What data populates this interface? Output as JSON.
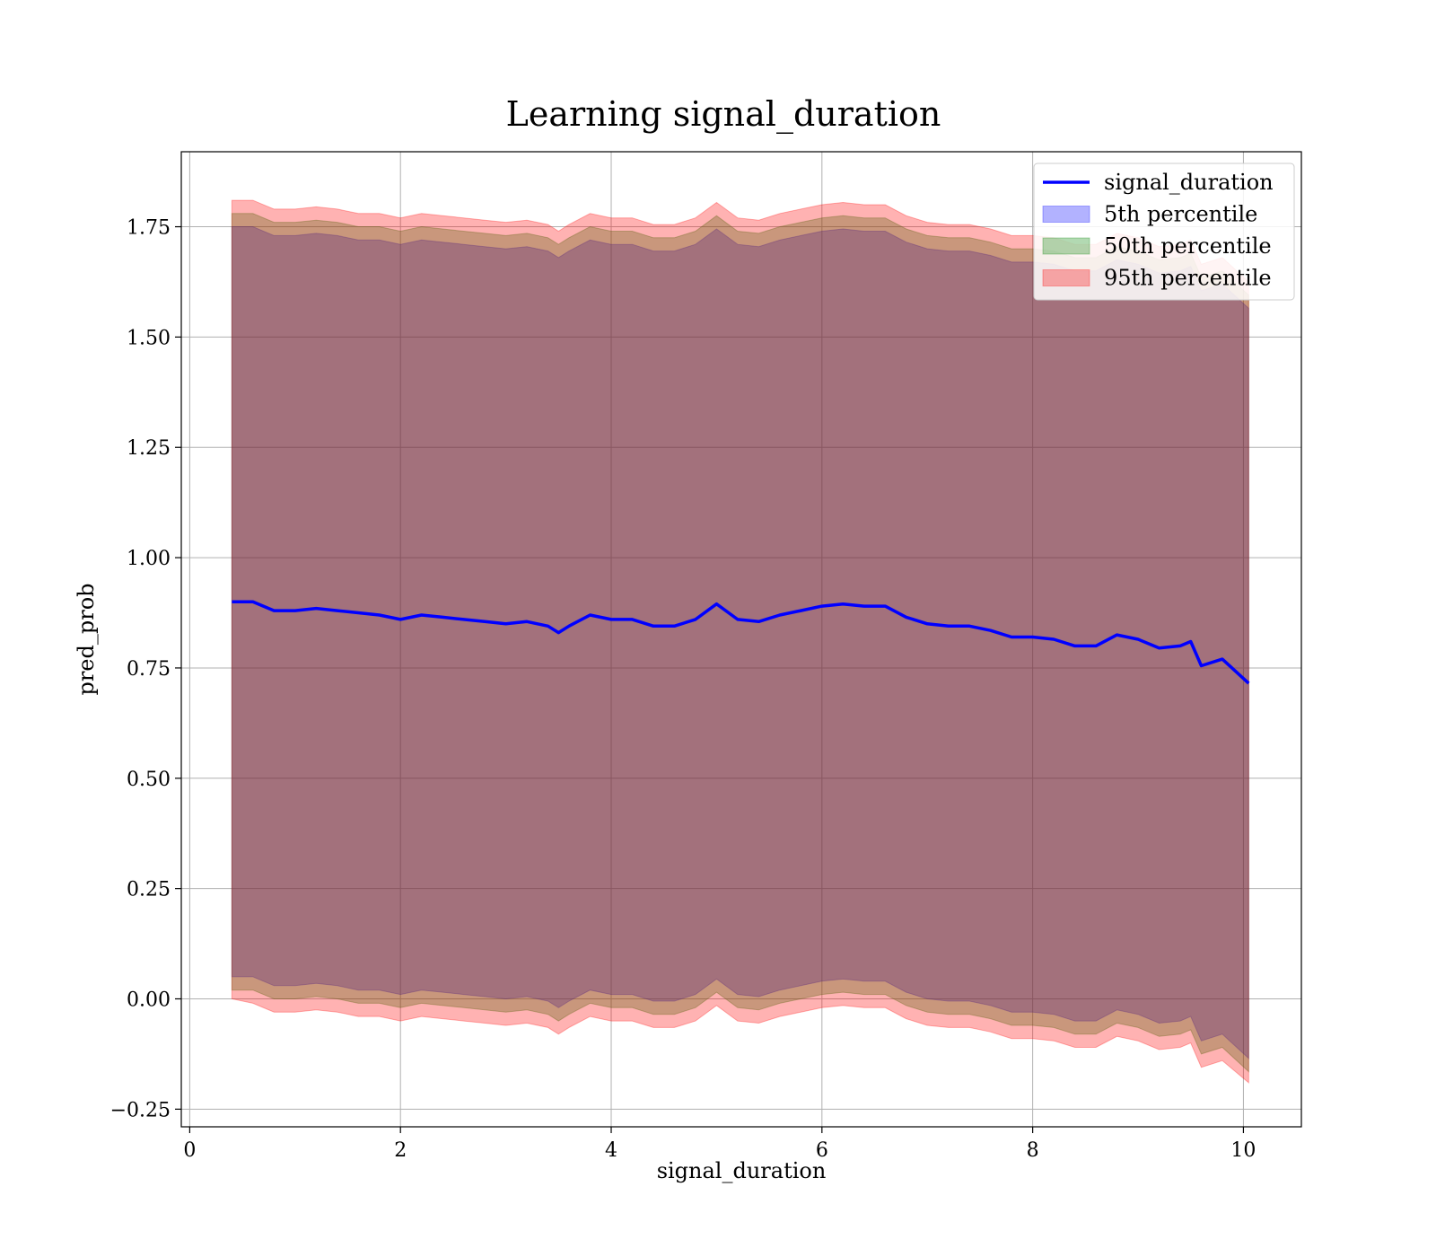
{
  "chart_data": {
    "type": "area",
    "title": "Learning signal_duration",
    "xlabel": "signal_duration",
    "ylabel": "pred_prob",
    "xlim": [
      -0.08,
      10.55
    ],
    "ylim": [
      -0.29,
      1.92
    ],
    "xticks": [
      0,
      2,
      4,
      6,
      8,
      10
    ],
    "xtick_labels": [
      "0",
      "2",
      "4",
      "6",
      "8",
      "10"
    ],
    "yticks": [
      -0.25,
      0.0,
      0.25,
      0.5,
      0.75,
      1.0,
      1.25,
      1.5,
      1.75
    ],
    "ytick_labels": [
      "−0.25",
      "0.00",
      "0.25",
      "0.50",
      "0.75",
      "1.00",
      "1.25",
      "1.50",
      "1.75"
    ],
    "grid": true,
    "legend_position": "top-right",
    "x": [
      0.4,
      0.6,
      0.8,
      1.0,
      1.2,
      1.4,
      1.6,
      1.8,
      2.0,
      2.2,
      2.4,
      2.6,
      2.8,
      3.0,
      3.2,
      3.4,
      3.5,
      3.6,
      3.8,
      4.0,
      4.2,
      4.4,
      4.6,
      4.8,
      5.0,
      5.2,
      5.4,
      5.6,
      5.8,
      6.0,
      6.2,
      6.4,
      6.6,
      6.8,
      7.0,
      7.2,
      7.4,
      7.6,
      7.8,
      8.0,
      8.2,
      8.4,
      8.6,
      8.8,
      9.0,
      9.2,
      9.4,
      9.5,
      9.6,
      9.8,
      10.05
    ],
    "series": [
      {
        "name": "signal_duration",
        "kind": "line",
        "color": "#0000ff",
        "values": [
          0.9,
          0.9,
          0.88,
          0.88,
          0.885,
          0.88,
          0.875,
          0.87,
          0.86,
          0.87,
          0.865,
          0.86,
          0.855,
          0.85,
          0.855,
          0.845,
          0.83,
          0.845,
          0.87,
          0.86,
          0.86,
          0.845,
          0.845,
          0.86,
          0.895,
          0.86,
          0.855,
          0.87,
          0.88,
          0.89,
          0.895,
          0.89,
          0.89,
          0.865,
          0.85,
          0.845,
          0.845,
          0.835,
          0.82,
          0.82,
          0.815,
          0.8,
          0.8,
          0.825,
          0.815,
          0.795,
          0.8,
          0.81,
          0.755,
          0.77,
          0.715
        ]
      },
      {
        "name": "5th percentile",
        "kind": "band",
        "color": "#0000ff",
        "lower": [
          0.05,
          0.05,
          0.03,
          0.03,
          0.035,
          0.03,
          0.02,
          0.02,
          0.01,
          0.02,
          0.015,
          0.01,
          0.005,
          0.0,
          0.005,
          -0.005,
          -0.02,
          -0.005,
          0.02,
          0.01,
          0.01,
          -0.005,
          -0.005,
          0.01,
          0.045,
          0.01,
          0.005,
          0.02,
          0.03,
          0.04,
          0.045,
          0.04,
          0.04,
          0.015,
          0.0,
          -0.005,
          -0.005,
          -0.015,
          -0.03,
          -0.03,
          -0.035,
          -0.05,
          -0.05,
          -0.025,
          -0.035,
          -0.055,
          -0.05,
          -0.04,
          -0.095,
          -0.08,
          -0.135
        ],
        "upper": [
          1.75,
          1.75,
          1.73,
          1.73,
          1.735,
          1.73,
          1.72,
          1.72,
          1.71,
          1.72,
          1.715,
          1.71,
          1.705,
          1.7,
          1.705,
          1.695,
          1.68,
          1.695,
          1.72,
          1.71,
          1.71,
          1.695,
          1.695,
          1.71,
          1.745,
          1.71,
          1.705,
          1.72,
          1.73,
          1.74,
          1.745,
          1.74,
          1.74,
          1.715,
          1.7,
          1.695,
          1.695,
          1.685,
          1.67,
          1.67,
          1.665,
          1.65,
          1.65,
          1.675,
          1.665,
          1.645,
          1.65,
          1.66,
          1.605,
          1.62,
          1.565
        ]
      },
      {
        "name": "50th percentile",
        "kind": "band",
        "color": "#008000",
        "lower": [
          0.02,
          0.02,
          0.0,
          0.0,
          0.005,
          0.0,
          -0.01,
          -0.01,
          -0.02,
          -0.01,
          -0.015,
          -0.02,
          -0.025,
          -0.03,
          -0.025,
          -0.035,
          -0.05,
          -0.035,
          -0.01,
          -0.02,
          -0.02,
          -0.035,
          -0.035,
          -0.02,
          0.015,
          -0.02,
          -0.025,
          -0.01,
          0.0,
          0.01,
          0.015,
          0.01,
          0.01,
          -0.015,
          -0.03,
          -0.035,
          -0.035,
          -0.045,
          -0.06,
          -0.06,
          -0.065,
          -0.08,
          -0.08,
          -0.055,
          -0.065,
          -0.085,
          -0.08,
          -0.07,
          -0.125,
          -0.11,
          -0.165
        ],
        "upper": [
          1.78,
          1.78,
          1.76,
          1.76,
          1.765,
          1.76,
          1.75,
          1.75,
          1.74,
          1.75,
          1.745,
          1.74,
          1.735,
          1.73,
          1.735,
          1.725,
          1.71,
          1.725,
          1.75,
          1.74,
          1.74,
          1.725,
          1.725,
          1.74,
          1.775,
          1.74,
          1.735,
          1.75,
          1.76,
          1.77,
          1.775,
          1.77,
          1.77,
          1.745,
          1.73,
          1.725,
          1.725,
          1.715,
          1.7,
          1.7,
          1.695,
          1.68,
          1.68,
          1.705,
          1.695,
          1.675,
          1.68,
          1.69,
          1.635,
          1.65,
          1.595
        ]
      },
      {
        "name": "95th percentile",
        "kind": "band",
        "color": "#ff0000",
        "lower": [
          -0.0,
          -0.01,
          -0.03,
          -0.03,
          -0.025,
          -0.03,
          -0.04,
          -0.04,
          -0.05,
          -0.04,
          -0.045,
          -0.05,
          -0.055,
          -0.06,
          -0.055,
          -0.065,
          -0.08,
          -0.065,
          -0.04,
          -0.05,
          -0.05,
          -0.065,
          -0.065,
          -0.05,
          -0.015,
          -0.05,
          -0.055,
          -0.04,
          -0.03,
          -0.02,
          -0.015,
          -0.02,
          -0.02,
          -0.045,
          -0.06,
          -0.065,
          -0.065,
          -0.075,
          -0.09,
          -0.09,
          -0.095,
          -0.11,
          -0.11,
          -0.085,
          -0.095,
          -0.115,
          -0.11,
          -0.1,
          -0.155,
          -0.14,
          -0.19
        ],
        "upper": [
          1.81,
          1.81,
          1.79,
          1.79,
          1.795,
          1.79,
          1.78,
          1.78,
          1.77,
          1.78,
          1.775,
          1.77,
          1.765,
          1.76,
          1.765,
          1.755,
          1.74,
          1.755,
          1.78,
          1.77,
          1.77,
          1.755,
          1.755,
          1.77,
          1.805,
          1.77,
          1.765,
          1.78,
          1.79,
          1.8,
          1.805,
          1.8,
          1.8,
          1.775,
          1.76,
          1.755,
          1.755,
          1.745,
          1.73,
          1.73,
          1.725,
          1.71,
          1.71,
          1.735,
          1.725,
          1.705,
          1.71,
          1.72,
          1.665,
          1.68,
          1.625
        ]
      }
    ]
  },
  "colors": {
    "line": "#0000ff",
    "band_5th": "#0000ff",
    "band_50th": "#008000",
    "band_95th": "#ff0000",
    "grid": "#b0b0b0"
  }
}
